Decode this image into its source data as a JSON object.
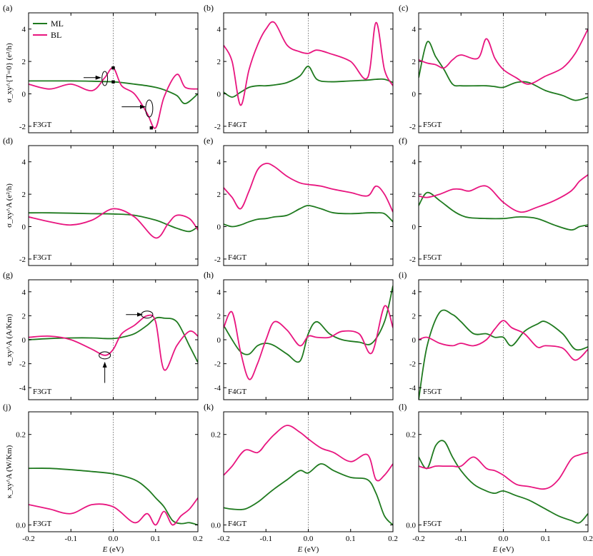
{
  "colors": {
    "ML": "#1f7a1f",
    "BL": "#e8157f",
    "axis": "#000000",
    "zero_line": "#555555"
  },
  "legend": {
    "placement": "top-left of panel (a)",
    "entries": [
      "ML",
      "BL"
    ]
  },
  "x_axis": {
    "label_prefix": "E",
    "label_suffix": " (eV)",
    "ticks": [
      "-0.2",
      "-0.1",
      "0.0",
      "0.1",
      "0.2"
    ],
    "range": [
      -0.2,
      0.2
    ]
  },
  "row_labels": [
    "σ_xy^{T=0} (e²/h)",
    "σ_xy^A (e²/h)",
    "α_xy^A (A/Km)",
    "κ_xy^A (W/Km)"
  ],
  "chart_data": [
    {
      "panel": "(a)",
      "tag": "F3GT",
      "type": "line",
      "ylim": [
        -2.4,
        5
      ],
      "yticks": [
        -2,
        0,
        2,
        4
      ],
      "x": [
        -0.2,
        -0.15,
        -0.1,
        -0.05,
        -0.02,
        0,
        0.02,
        0.05,
        0.08,
        0.1,
        0.12,
        0.15,
        0.17,
        0.2
      ],
      "series": [
        {
          "name": "ML",
          "y": [
            0.8,
            0.8,
            0.8,
            0.78,
            0.76,
            0.74,
            0.7,
            0.6,
            0.5,
            0.4,
            0.25,
            -0.1,
            -0.6,
            0.0
          ]
        },
        {
          "name": "BL",
          "y": [
            0.6,
            0.3,
            0.6,
            0.2,
            1.0,
            1.6,
            0.5,
            0.0,
            -1.2,
            -2.1,
            -0.2,
            1.2,
            0.4,
            0.3
          ]
        }
      ],
      "markers": [
        {
          "x": 0,
          "y": 1.6
        },
        {
          "x": 0,
          "y": 0.74
        },
        {
          "x": 0.09,
          "y": -2.1
        }
      ],
      "annotations": [
        "arrow to ML/BL crossing near E=-0.02",
        "arrow to BL dip near E=0.08"
      ]
    },
    {
      "panel": "(b)",
      "tag": "F4GT",
      "type": "line",
      "ylim": [
        -2.4,
        5
      ],
      "yticks": [
        -2,
        0,
        2,
        4
      ],
      "x": [
        -0.2,
        -0.18,
        -0.16,
        -0.14,
        -0.12,
        -0.1,
        -0.08,
        -0.05,
        -0.02,
        0,
        0.02,
        0.05,
        0.1,
        0.14,
        0.16,
        0.18,
        0.2
      ],
      "series": [
        {
          "name": "ML",
          "y": [
            0.1,
            -0.2,
            0.1,
            0.4,
            0.5,
            0.5,
            0.55,
            0.7,
            1.1,
            1.7,
            0.9,
            0.75,
            0.8,
            0.85,
            0.9,
            0.9,
            0.7
          ]
        },
        {
          "name": "BL",
          "y": [
            3.0,
            2.0,
            -0.7,
            1.5,
            3.0,
            4.0,
            4.4,
            3.0,
            2.6,
            2.5,
            2.7,
            2.5,
            2.0,
            1.0,
            4.4,
            1.5,
            0.5
          ]
        }
      ]
    },
    {
      "panel": "(c)",
      "tag": "F5GT",
      "type": "line",
      "ylim": [
        -2.4,
        5
      ],
      "yticks": [
        -2,
        0,
        2,
        4
      ],
      "x": [
        -0.2,
        -0.18,
        -0.16,
        -0.14,
        -0.12,
        -0.1,
        -0.06,
        -0.04,
        -0.02,
        0,
        0.03,
        0.06,
        0.1,
        0.14,
        0.17,
        0.2
      ],
      "series": [
        {
          "name": "ML",
          "y": [
            1.0,
            3.2,
            2.3,
            1.5,
            0.6,
            0.5,
            0.5,
            0.5,
            0.45,
            0.4,
            0.7,
            0.7,
            0.2,
            -0.1,
            -0.4,
            -0.2
          ]
        },
        {
          "name": "BL",
          "y": [
            2.1,
            1.9,
            1.8,
            1.6,
            2.1,
            2.4,
            2.2,
            3.4,
            2.2,
            1.5,
            1.0,
            0.6,
            1.1,
            1.6,
            2.5,
            4.0
          ]
        }
      ]
    },
    {
      "panel": "(d)",
      "tag": "F3GT",
      "type": "line",
      "ylim": [
        -2.4,
        5
      ],
      "yticks": [
        -2,
        0,
        2,
        4
      ],
      "x": [
        -0.2,
        -0.15,
        -0.1,
        -0.05,
        0,
        0.05,
        0.1,
        0.13,
        0.15,
        0.18,
        0.2
      ],
      "series": [
        {
          "name": "ML",
          "y": [
            0.85,
            0.85,
            0.83,
            0.8,
            0.78,
            0.7,
            0.4,
            0.1,
            -0.1,
            -0.3,
            0.0
          ]
        },
        {
          "name": "BL",
          "y": [
            0.6,
            0.3,
            0.1,
            0.4,
            1.1,
            0.6,
            -0.7,
            0.2,
            0.7,
            0.5,
            -0.2
          ]
        }
      ]
    },
    {
      "panel": "(e)",
      "tag": "F4GT",
      "type": "line",
      "ylim": [
        -2.4,
        5
      ],
      "yticks": [
        -2,
        0,
        2,
        4
      ],
      "x": [
        -0.2,
        -0.18,
        -0.16,
        -0.14,
        -0.12,
        -0.1,
        -0.08,
        -0.05,
        -0.02,
        0,
        0.03,
        0.06,
        0.1,
        0.14,
        0.16,
        0.18,
        0.2
      ],
      "series": [
        {
          "name": "ML",
          "y": [
            0.15,
            0.0,
            0.1,
            0.3,
            0.45,
            0.5,
            0.6,
            0.7,
            1.1,
            1.3,
            1.1,
            0.85,
            0.8,
            0.85,
            0.85,
            0.8,
            0.3
          ]
        },
        {
          "name": "BL",
          "y": [
            2.4,
            1.8,
            1.1,
            2.2,
            3.5,
            3.9,
            3.7,
            3.1,
            2.7,
            2.6,
            2.5,
            2.3,
            2.1,
            1.9,
            2.5,
            2.0,
            0.9
          ]
        }
      ]
    },
    {
      "panel": "(f)",
      "tag": "F5GT",
      "type": "line",
      "ylim": [
        -2.4,
        5
      ],
      "yticks": [
        -2,
        0,
        2,
        4
      ],
      "x": [
        -0.2,
        -0.18,
        -0.15,
        -0.12,
        -0.1,
        -0.08,
        -0.04,
        0,
        0.04,
        0.08,
        0.12,
        0.16,
        0.18,
        0.2
      ],
      "series": [
        {
          "name": "ML",
          "y": [
            1.3,
            2.1,
            1.6,
            1.0,
            0.7,
            0.55,
            0.5,
            0.5,
            0.6,
            0.5,
            0.1,
            -0.2,
            0.0,
            0.1
          ]
        },
        {
          "name": "BL",
          "y": [
            1.9,
            1.8,
            2.0,
            2.3,
            2.3,
            2.2,
            2.5,
            1.5,
            0.9,
            1.2,
            1.6,
            2.2,
            2.8,
            3.2
          ]
        }
      ]
    },
    {
      "panel": "(g)",
      "tag": "F3GT",
      "type": "line",
      "ylim": [
        -5,
        5
      ],
      "yticks": [
        -4,
        -2,
        0,
        2,
        4
      ],
      "x": [
        -0.2,
        -0.15,
        -0.1,
        -0.05,
        -0.02,
        0,
        0.02,
        0.05,
        0.08,
        0.1,
        0.12,
        0.15,
        0.18,
        0.2
      ],
      "series": [
        {
          "name": "ML",
          "y": [
            0.0,
            0.1,
            0.15,
            0.15,
            0.1,
            0.1,
            0.2,
            0.5,
            1.2,
            1.8,
            1.8,
            1.5,
            -0.5,
            -1.9
          ]
        },
        {
          "name": "BL",
          "y": [
            0.2,
            0.3,
            0.0,
            -0.8,
            -1.3,
            -0.8,
            0.5,
            1.2,
            2.0,
            1.5,
            -2.5,
            -0.5,
            0.7,
            0.3
          ]
        }
      ],
      "annotations": [
        "arrow to BL minimum near E=-0.02",
        "arrow to BL maximum near E=0.08"
      ]
    },
    {
      "panel": "(h)",
      "tag": "F4GT",
      "type": "line",
      "ylim": [
        -5,
        5
      ],
      "yticks": [
        -4,
        -2,
        0,
        2,
        4
      ],
      "x": [
        -0.2,
        -0.18,
        -0.16,
        -0.14,
        -0.12,
        -0.1,
        -0.08,
        -0.05,
        -0.02,
        0,
        0.02,
        0.05,
        0.08,
        0.12,
        0.15,
        0.18,
        0.2
      ],
      "series": [
        {
          "name": "ML",
          "y": [
            1.2,
            0.0,
            -1.0,
            -1.2,
            -0.5,
            -0.3,
            -0.5,
            -1.2,
            -1.8,
            0.5,
            1.5,
            0.5,
            0.0,
            -0.2,
            -0.3,
            1.5,
            4.5
          ]
        },
        {
          "name": "BL",
          "y": [
            1.0,
            2.3,
            -1.0,
            -3.3,
            -2.0,
            0.0,
            1.5,
            0.8,
            -0.5,
            0.3,
            0.2,
            0.2,
            0.7,
            0.5,
            -1.1,
            2.8,
            1.0
          ]
        }
      ]
    },
    {
      "panel": "(i)",
      "tag": "F5GT",
      "type": "line",
      "ylim": [
        -5,
        5
      ],
      "yticks": [
        -4,
        -2,
        0,
        2,
        4
      ],
      "x": [
        -0.2,
        -0.18,
        -0.15,
        -0.12,
        -0.1,
        -0.07,
        -0.04,
        -0.02,
        0,
        0.02,
        0.05,
        0.08,
        0.1,
        0.14,
        0.17,
        0.2
      ],
      "series": [
        {
          "name": "ML",
          "y": [
            -5,
            -0.5,
            2.3,
            2.1,
            1.5,
            0.5,
            0.5,
            0.2,
            0.2,
            -0.5,
            0.7,
            1.3,
            1.5,
            0.5,
            -0.8,
            -0.6
          ]
        },
        {
          "name": "BL",
          "y": [
            0.0,
            0.2,
            -0.3,
            -0.5,
            -0.3,
            -0.5,
            0.0,
            0.9,
            1.6,
            1.0,
            0.5,
            -0.6,
            -0.5,
            -0.7,
            -1.7,
            -0.8
          ]
        }
      ]
    },
    {
      "panel": "(j)",
      "tag": "F3GT",
      "type": "line",
      "ylim": [
        -0.015,
        0.25
      ],
      "yticks": [
        0.0,
        0.2
      ],
      "x": [
        -0.2,
        -0.15,
        -0.1,
        -0.05,
        0,
        0.05,
        0.08,
        0.1,
        0.12,
        0.14,
        0.16,
        0.18,
        0.2
      ],
      "series": [
        {
          "name": "ML",
          "y": [
            0.125,
            0.125,
            0.122,
            0.118,
            0.113,
            0.1,
            0.08,
            0.06,
            0.04,
            0.01,
            0.003,
            0.005,
            0.0
          ]
        },
        {
          "name": "BL",
          "y": [
            0.045,
            0.035,
            0.025,
            0.045,
            0.04,
            0.005,
            0.025,
            0.0,
            0.03,
            0.0,
            0.02,
            0.035,
            0.06
          ]
        }
      ]
    },
    {
      "panel": "(k)",
      "tag": "F4GT",
      "type": "line",
      "ylim": [
        -0.015,
        0.25
      ],
      "yticks": [
        0.0,
        0.2
      ],
      "x": [
        -0.2,
        -0.18,
        -0.15,
        -0.12,
        -0.1,
        -0.08,
        -0.05,
        -0.02,
        0,
        0.03,
        0.06,
        0.1,
        0.14,
        0.16,
        0.18,
        0.2
      ],
      "series": [
        {
          "name": "ML",
          "y": [
            0.038,
            0.035,
            0.035,
            0.05,
            0.065,
            0.08,
            0.1,
            0.12,
            0.115,
            0.135,
            0.12,
            0.105,
            0.1,
            0.07,
            0.02,
            0.0
          ]
        },
        {
          "name": "BL",
          "y": [
            0.11,
            0.13,
            0.165,
            0.16,
            0.18,
            0.2,
            0.22,
            0.205,
            0.19,
            0.17,
            0.16,
            0.14,
            0.155,
            0.1,
            0.11,
            0.135
          ]
        }
      ]
    },
    {
      "panel": "(l)",
      "tag": "F5GT",
      "type": "line",
      "ylim": [
        -0.015,
        0.25
      ],
      "yticks": [
        0.0,
        0.2
      ],
      "x": [
        -0.2,
        -0.18,
        -0.16,
        -0.14,
        -0.12,
        -0.1,
        -0.07,
        -0.04,
        -0.02,
        0,
        0.03,
        0.06,
        0.1,
        0.13,
        0.16,
        0.18,
        0.2
      ],
      "series": [
        {
          "name": "ML",
          "y": [
            0.15,
            0.125,
            0.175,
            0.185,
            0.15,
            0.12,
            0.09,
            0.075,
            0.07,
            0.075,
            0.065,
            0.055,
            0.035,
            0.02,
            0.01,
            0.005,
            0.025
          ]
        },
        {
          "name": "BL",
          "y": [
            0.13,
            0.125,
            0.13,
            0.13,
            0.13,
            0.13,
            0.15,
            0.125,
            0.12,
            0.11,
            0.09,
            0.085,
            0.08,
            0.1,
            0.145,
            0.155,
            0.16
          ]
        }
      ]
    }
  ]
}
